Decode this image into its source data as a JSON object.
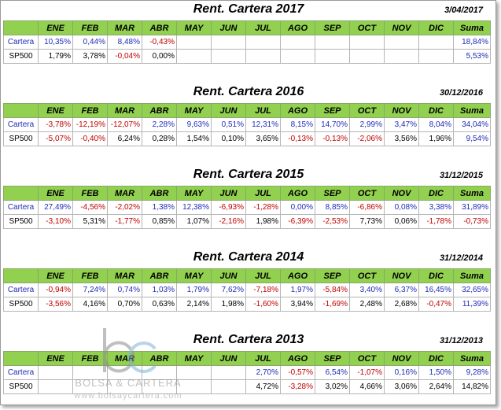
{
  "columns": [
    "ENE",
    "FEB",
    "MAR",
    "ABR",
    "MAY",
    "JUN",
    "JUL",
    "AGO",
    "SEP",
    "OCT",
    "NOV",
    "DIC",
    "Suma"
  ],
  "colors": {
    "header_bg": "#92d050",
    "positive": "#1f2db8",
    "negative": "#c00000",
    "neutral": "#000000"
  },
  "sections": [
    {
      "title": "Rent. Cartera 2017",
      "date": "3/04/2017",
      "rows": [
        {
          "label": "Cartera",
          "label_color": "blue",
          "cells": [
            {
              "v": "10,35%",
              "c": "blue"
            },
            {
              "v": "0,44%",
              "c": "blue"
            },
            {
              "v": "8,48%",
              "c": "blue"
            },
            {
              "v": "-0,43%",
              "c": "red"
            },
            {
              "v": "",
              "c": "black"
            },
            {
              "v": "",
              "c": "black"
            },
            {
              "v": "",
              "c": "black"
            },
            {
              "v": "",
              "c": "black"
            },
            {
              "v": "",
              "c": "black"
            },
            {
              "v": "",
              "c": "black"
            },
            {
              "v": "",
              "c": "black"
            },
            {
              "v": "",
              "c": "black"
            },
            {
              "v": "18,84%",
              "c": "blue"
            }
          ]
        },
        {
          "label": "SP500",
          "label_color": "black",
          "cells": [
            {
              "v": "1,79%",
              "c": "black"
            },
            {
              "v": "3,78%",
              "c": "black"
            },
            {
              "v": "-0,04%",
              "c": "red"
            },
            {
              "v": "0,00%",
              "c": "black"
            },
            {
              "v": "",
              "c": "black"
            },
            {
              "v": "",
              "c": "black"
            },
            {
              "v": "",
              "c": "black"
            },
            {
              "v": "",
              "c": "black"
            },
            {
              "v": "",
              "c": "black"
            },
            {
              "v": "",
              "c": "black"
            },
            {
              "v": "",
              "c": "black"
            },
            {
              "v": "",
              "c": "black"
            },
            {
              "v": "5,53%",
              "c": "blue"
            }
          ]
        }
      ]
    },
    {
      "title": "Rent. Cartera 2016",
      "date": "30/12/2016",
      "rows": [
        {
          "label": "Cartera",
          "label_color": "blue",
          "cells": [
            {
              "v": "-3,78%",
              "c": "red"
            },
            {
              "v": "-12,19%",
              "c": "red"
            },
            {
              "v": "-12,07%",
              "c": "red"
            },
            {
              "v": "2,28%",
              "c": "blue"
            },
            {
              "v": "9,63%",
              "c": "blue"
            },
            {
              "v": "0,51%",
              "c": "blue"
            },
            {
              "v": "12,31%",
              "c": "blue"
            },
            {
              "v": "8,15%",
              "c": "blue"
            },
            {
              "v": "14,70%",
              "c": "blue"
            },
            {
              "v": "2,99%",
              "c": "blue"
            },
            {
              "v": "3,47%",
              "c": "blue"
            },
            {
              "v": "8,04%",
              "c": "blue"
            },
            {
              "v": "34,04%",
              "c": "blue"
            }
          ]
        },
        {
          "label": "SP500",
          "label_color": "black",
          "cells": [
            {
              "v": "-5,07%",
              "c": "red"
            },
            {
              "v": "-0,40%",
              "c": "red"
            },
            {
              "v": "6,24%",
              "c": "black"
            },
            {
              "v": "0,28%",
              "c": "black"
            },
            {
              "v": "1,54%",
              "c": "black"
            },
            {
              "v": "0,10%",
              "c": "black"
            },
            {
              "v": "3,65%",
              "c": "black"
            },
            {
              "v": "-0,13%",
              "c": "red"
            },
            {
              "v": "-0,13%",
              "c": "red"
            },
            {
              "v": "-2,06%",
              "c": "red"
            },
            {
              "v": "3,56%",
              "c": "black"
            },
            {
              "v": "1,96%",
              "c": "black"
            },
            {
              "v": "9,54%",
              "c": "blue"
            }
          ]
        }
      ]
    },
    {
      "title": "Rent. Cartera 2015",
      "date": "31/12/2015",
      "rows": [
        {
          "label": "Cartera",
          "label_color": "blue",
          "cells": [
            {
              "v": "27,49%",
              "c": "blue"
            },
            {
              "v": "-4,56%",
              "c": "red"
            },
            {
              "v": "-2,02%",
              "c": "red"
            },
            {
              "v": "1,38%",
              "c": "blue"
            },
            {
              "v": "12,38%",
              "c": "blue"
            },
            {
              "v": "-6,93%",
              "c": "red"
            },
            {
              "v": "-1,28%",
              "c": "red"
            },
            {
              "v": "0,00%",
              "c": "blue"
            },
            {
              "v": "8,85%",
              "c": "blue"
            },
            {
              "v": "-6,86%",
              "c": "red"
            },
            {
              "v": "0,08%",
              "c": "blue"
            },
            {
              "v": "3,38%",
              "c": "blue"
            },
            {
              "v": "31,89%",
              "c": "blue"
            }
          ]
        },
        {
          "label": "SP500",
          "label_color": "black",
          "cells": [
            {
              "v": "-3,10%",
              "c": "red"
            },
            {
              "v": "5,31%",
              "c": "black"
            },
            {
              "v": "-1,77%",
              "c": "red"
            },
            {
              "v": "0,85%",
              "c": "black"
            },
            {
              "v": "1,07%",
              "c": "black"
            },
            {
              "v": "-2,16%",
              "c": "red"
            },
            {
              "v": "1,98%",
              "c": "black"
            },
            {
              "v": "-6,39%",
              "c": "red"
            },
            {
              "v": "-2,53%",
              "c": "red"
            },
            {
              "v": "7,73%",
              "c": "black"
            },
            {
              "v": "0,06%",
              "c": "black"
            },
            {
              "v": "-1,78%",
              "c": "red"
            },
            {
              "v": "-0,73%",
              "c": "red"
            }
          ]
        }
      ]
    },
    {
      "title": "Rent. Cartera 2014",
      "date": "31/12/2014",
      "rows": [
        {
          "label": "Cartera",
          "label_color": "blue",
          "cells": [
            {
              "v": "-0,94%",
              "c": "red"
            },
            {
              "v": "7,24%",
              "c": "blue"
            },
            {
              "v": "0,74%",
              "c": "blue"
            },
            {
              "v": "1,03%",
              "c": "blue"
            },
            {
              "v": "1,79%",
              "c": "blue"
            },
            {
              "v": "7,62%",
              "c": "blue"
            },
            {
              "v": "-7,18%",
              "c": "red"
            },
            {
              "v": "1,97%",
              "c": "blue"
            },
            {
              "v": "-5,84%",
              "c": "red"
            },
            {
              "v": "3,40%",
              "c": "blue"
            },
            {
              "v": "6,37%",
              "c": "blue"
            },
            {
              "v": "16,45%",
              "c": "blue"
            },
            {
              "v": "32,65%",
              "c": "blue"
            }
          ]
        },
        {
          "label": "SP500",
          "label_color": "black",
          "cells": [
            {
              "v": "-3,56%",
              "c": "red"
            },
            {
              "v": "4,16%",
              "c": "black"
            },
            {
              "v": "0,70%",
              "c": "black"
            },
            {
              "v": "0,63%",
              "c": "black"
            },
            {
              "v": "2,14%",
              "c": "black"
            },
            {
              "v": "1,98%",
              "c": "black"
            },
            {
              "v": "-1,60%",
              "c": "red"
            },
            {
              "v": "3,94%",
              "c": "black"
            },
            {
              "v": "-1,69%",
              "c": "red"
            },
            {
              "v": "2,48%",
              "c": "black"
            },
            {
              "v": "2,68%",
              "c": "black"
            },
            {
              "v": "-0,47%",
              "c": "red"
            },
            {
              "v": "11,39%",
              "c": "blue"
            }
          ]
        }
      ]
    },
    {
      "title": "Rent. Cartera 2013",
      "date": "31/12/2013",
      "rows": [
        {
          "label": "Cartera",
          "label_color": "blue",
          "cells": [
            {
              "v": "",
              "c": "black"
            },
            {
              "v": "",
              "c": "black"
            },
            {
              "v": "",
              "c": "black"
            },
            {
              "v": "",
              "c": "black"
            },
            {
              "v": "",
              "c": "black"
            },
            {
              "v": "",
              "c": "black"
            },
            {
              "v": "2,70%",
              "c": "blue"
            },
            {
              "v": "-0,57%",
              "c": "red"
            },
            {
              "v": "6,54%",
              "c": "blue"
            },
            {
              "v": "-1,07%",
              "c": "red"
            },
            {
              "v": "0,16%",
              "c": "blue"
            },
            {
              "v": "1,50%",
              "c": "blue"
            },
            {
              "v": "9,28%",
              "c": "blue"
            }
          ]
        },
        {
          "label": "SP500",
          "label_color": "black",
          "cells": [
            {
              "v": "",
              "c": "black"
            },
            {
              "v": "",
              "c": "black"
            },
            {
              "v": "",
              "c": "black"
            },
            {
              "v": "",
              "c": "black"
            },
            {
              "v": "",
              "c": "black"
            },
            {
              "v": "",
              "c": "black"
            },
            {
              "v": "4,72%",
              "c": "black"
            },
            {
              "v": "-3,28%",
              "c": "red"
            },
            {
              "v": "3,02%",
              "c": "black"
            },
            {
              "v": "4,66%",
              "c": "black"
            },
            {
              "v": "3,06%",
              "c": "black"
            },
            {
              "v": "2,64%",
              "c": "black"
            },
            {
              "v": "14,82%",
              "c": "black"
            }
          ]
        }
      ]
    }
  ],
  "watermark": {
    "name": "BOLSA & CARTERA",
    "url": "www.bolsaycartera.com",
    "logo_icon": "bc-logo-icon"
  }
}
